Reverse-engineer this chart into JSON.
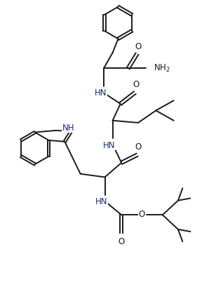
{
  "background_color": "#ffffff",
  "line_color": "#1a1a1a",
  "blue": "#1a2e6e",
  "lw": 1.4,
  "fs": 8.5,
  "xlim": [
    0,
    10
  ],
  "ylim": [
    0,
    13.5
  ]
}
